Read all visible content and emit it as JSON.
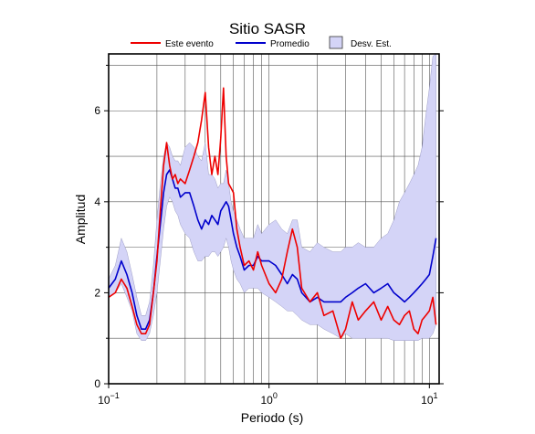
{
  "chart_data": {
    "type": "line",
    "title": "Sitio SASR",
    "xlabel": "Periodo (s)",
    "ylabel": "Amplitud",
    "x_scale": "log",
    "xlim": [
      0.1,
      11.5
    ],
    "ylim": [
      0,
      7.25
    ],
    "grid": true,
    "legend_position": "top",
    "x_ticks": [
      {
        "value": 0.1,
        "base": "10",
        "exp": "−1"
      },
      {
        "value": 1,
        "base": "10",
        "exp": "0"
      },
      {
        "value": 10,
        "base": "10",
        "exp": "1"
      }
    ],
    "y_ticks": [
      0,
      2,
      4,
      6
    ],
    "legend": {
      "event": "Este evento",
      "mean": "Promedio",
      "std": "Desv. Est."
    },
    "colors": {
      "event": "#ee0000",
      "mean": "#0000cc",
      "std_fill": "#d4d4f7",
      "std_edge": "#8a8ab8"
    },
    "series": [
      {
        "name": "Este evento",
        "x": [
          0.1,
          0.11,
          0.12,
          0.13,
          0.14,
          0.15,
          0.16,
          0.17,
          0.18,
          0.19,
          0.2,
          0.21,
          0.22,
          0.23,
          0.24,
          0.25,
          0.26,
          0.27,
          0.28,
          0.3,
          0.32,
          0.34,
          0.36,
          0.38,
          0.4,
          0.42,
          0.44,
          0.46,
          0.48,
          0.5,
          0.52,
          0.54,
          0.56,
          0.58,
          0.6,
          0.63,
          0.66,
          0.7,
          0.75,
          0.8,
          0.85,
          0.9,
          1.0,
          1.1,
          1.2,
          1.3,
          1.4,
          1.5,
          1.6,
          1.8,
          2.0,
          2.2,
          2.5,
          2.8,
          3.0,
          3.3,
          3.6,
          4.0,
          4.5,
          5.0,
          5.5,
          6.0,
          6.5,
          7.0,
          7.5,
          8.0,
          8.5,
          9.0,
          9.5,
          10.0,
          10.5,
          11.0
        ],
        "values": [
          1.9,
          2.0,
          2.3,
          2.1,
          1.7,
          1.3,
          1.1,
          1.1,
          1.3,
          2.0,
          2.7,
          3.8,
          4.8,
          5.3,
          4.8,
          4.5,
          4.6,
          4.4,
          4.5,
          4.4,
          4.7,
          5.0,
          5.3,
          5.8,
          6.4,
          5.2,
          4.6,
          5.0,
          4.6,
          5.4,
          6.5,
          5.0,
          4.4,
          4.3,
          4.2,
          3.4,
          3.0,
          2.6,
          2.7,
          2.5,
          2.9,
          2.6,
          2.2,
          2.0,
          2.3,
          2.9,
          3.4,
          3.0,
          2.1,
          1.8,
          2.0,
          1.5,
          1.6,
          1.0,
          1.2,
          1.8,
          1.4,
          1.6,
          1.8,
          1.4,
          1.7,
          1.4,
          1.3,
          1.5,
          1.6,
          1.2,
          1.1,
          1.4,
          1.5,
          1.6,
          1.9,
          1.3
        ]
      },
      {
        "name": "Promedio",
        "x": [
          0.1,
          0.11,
          0.12,
          0.13,
          0.14,
          0.15,
          0.16,
          0.17,
          0.18,
          0.19,
          0.2,
          0.21,
          0.22,
          0.23,
          0.24,
          0.25,
          0.26,
          0.27,
          0.28,
          0.3,
          0.32,
          0.34,
          0.36,
          0.38,
          0.4,
          0.42,
          0.44,
          0.46,
          0.48,
          0.5,
          0.52,
          0.54,
          0.56,
          0.58,
          0.6,
          0.63,
          0.66,
          0.7,
          0.75,
          0.8,
          0.85,
          0.9,
          1.0,
          1.1,
          1.2,
          1.3,
          1.4,
          1.5,
          1.6,
          1.8,
          2.0,
          2.2,
          2.5,
          2.8,
          3.0,
          3.3,
          3.6,
          4.0,
          4.5,
          5.0,
          5.5,
          6.0,
          6.5,
          7.0,
          7.5,
          8.0,
          8.5,
          9.0,
          9.5,
          10.0,
          10.5,
          11.0
        ],
        "values": [
          2.1,
          2.3,
          2.7,
          2.4,
          2.0,
          1.5,
          1.2,
          1.2,
          1.4,
          2.0,
          2.8,
          3.5,
          4.2,
          4.6,
          4.7,
          4.5,
          4.3,
          4.3,
          4.1,
          4.2,
          4.2,
          3.9,
          3.6,
          3.4,
          3.6,
          3.5,
          3.7,
          3.6,
          3.5,
          3.8,
          3.9,
          4.0,
          3.9,
          3.6,
          3.3,
          3.0,
          2.8,
          2.5,
          2.6,
          2.6,
          2.8,
          2.7,
          2.7,
          2.6,
          2.4,
          2.2,
          2.4,
          2.3,
          2.0,
          1.8,
          1.9,
          1.8,
          1.8,
          1.8,
          1.9,
          2.0,
          2.1,
          2.2,
          2.0,
          2.1,
          2.2,
          2.0,
          1.9,
          1.8,
          1.9,
          2.0,
          2.1,
          2.2,
          2.3,
          2.4,
          2.8,
          3.2
        ]
      }
    ],
    "std_band": {
      "name": "Desv. Est.",
      "x": [
        0.1,
        0.11,
        0.12,
        0.13,
        0.14,
        0.15,
        0.16,
        0.17,
        0.18,
        0.19,
        0.2,
        0.21,
        0.22,
        0.23,
        0.24,
        0.25,
        0.26,
        0.27,
        0.28,
        0.3,
        0.32,
        0.34,
        0.36,
        0.38,
        0.4,
        0.42,
        0.44,
        0.46,
        0.48,
        0.5,
        0.52,
        0.54,
        0.56,
        0.58,
        0.6,
        0.63,
        0.66,
        0.7,
        0.75,
        0.8,
        0.85,
        0.9,
        1.0,
        1.1,
        1.2,
        1.3,
        1.4,
        1.5,
        1.6,
        1.8,
        2.0,
        2.2,
        2.5,
        2.8,
        3.0,
        3.3,
        3.6,
        4.0,
        4.5,
        5.0,
        5.5,
        6.0,
        6.5,
        7.0,
        7.5,
        8.0,
        8.5,
        9.0,
        9.5,
        10.0,
        10.5,
        11.0
      ],
      "upper": [
        2.3,
        2.6,
        3.2,
        2.9,
        2.4,
        1.9,
        1.5,
        1.5,
        1.8,
        2.6,
        3.6,
        4.4,
        5.0,
        5.3,
        5.2,
        5.0,
        4.9,
        4.9,
        4.8,
        5.2,
        5.3,
        5.2,
        5.0,
        4.9,
        5.3,
        4.6,
        4.6,
        4.5,
        4.3,
        4.4,
        4.4,
        4.7,
        4.4,
        4.0,
        3.8,
        3.6,
        3.4,
        3.2,
        3.2,
        3.2,
        3.5,
        3.3,
        3.5,
        3.6,
        3.4,
        3.3,
        3.6,
        3.6,
        3.0,
        2.9,
        3.1,
        3.0,
        2.9,
        2.9,
        3.0,
        3.0,
        3.1,
        3.0,
        3.0,
        3.2,
        3.3,
        3.6,
        4.0,
        4.2,
        4.4,
        4.6,
        4.8,
        5.2,
        5.9,
        6.5,
        7.2,
        7.25
      ],
      "lower": [
        1.9,
        2.0,
        2.2,
        1.9,
        1.6,
        1.1,
        0.95,
        0.95,
        1.1,
        1.5,
        2.0,
        2.7,
        3.4,
        3.9,
        4.1,
        4.0,
        3.8,
        3.7,
        3.5,
        3.3,
        3.2,
        2.9,
        2.7,
        2.7,
        2.8,
        2.8,
        2.9,
        2.9,
        2.8,
        2.9,
        3.0,
        3.2,
        3.0,
        2.7,
        2.5,
        2.3,
        2.2,
        2.0,
        2.1,
        2.1,
        2.1,
        2.0,
        1.9,
        1.8,
        1.7,
        1.6,
        1.6,
        1.5,
        1.4,
        1.3,
        1.3,
        1.2,
        1.1,
        1.0,
        1.1,
        1.0,
        1.0,
        1.0,
        1.0,
        1.0,
        1.0,
        0.95,
        0.95,
        0.95,
        0.95,
        0.95,
        0.95,
        1.0,
        1.0,
        1.0,
        1.1,
        1.3
      ]
    }
  }
}
